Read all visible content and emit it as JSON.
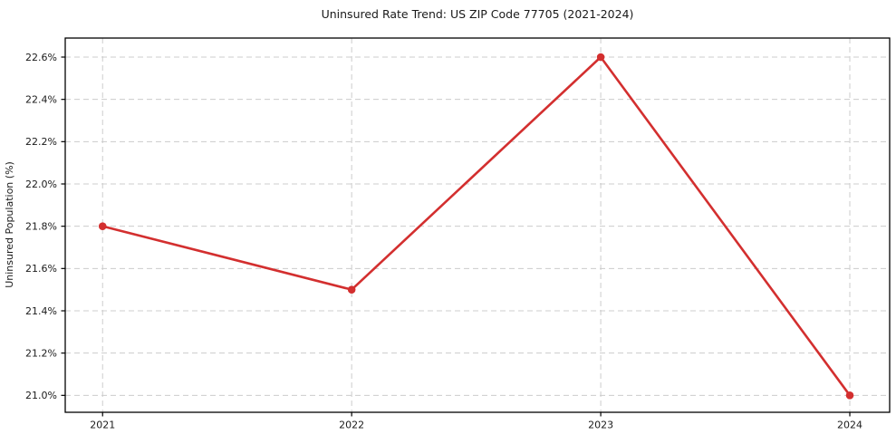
{
  "figure": {
    "background": "#ffffff"
  },
  "chart_data": {
    "type": "line",
    "title": "Uninsured Rate Trend: US ZIP Code 77705 (2021-2024)",
    "xlabel": "",
    "ylabel": "Uninsured Population (%)",
    "x": [
      2021,
      2022,
      2023,
      2024
    ],
    "xtick_labels": [
      "2021",
      "2022",
      "2023",
      "2024"
    ],
    "values": [
      21.8,
      21.5,
      22.6,
      21.0
    ],
    "yticks": [
      21.0,
      21.2,
      21.4,
      21.6,
      21.8,
      22.0,
      22.2,
      22.4,
      22.6
    ],
    "ytick_labels": [
      "21.0%",
      "21.2%",
      "21.4%",
      "21.6%",
      "21.8%",
      "22.0%",
      "22.2%",
      "22.4%",
      "22.6%"
    ],
    "xlim": [
      2020.85,
      2024.16
    ],
    "ylim": [
      20.92,
      22.69
    ],
    "grid": true,
    "legend": "none",
    "style": {
      "line_color": "#d32f2f",
      "marker_color": "#d32f2f",
      "grid_color": "#cccccc",
      "axis_color": "#000000",
      "text_color": "#1a1a1a"
    }
  }
}
